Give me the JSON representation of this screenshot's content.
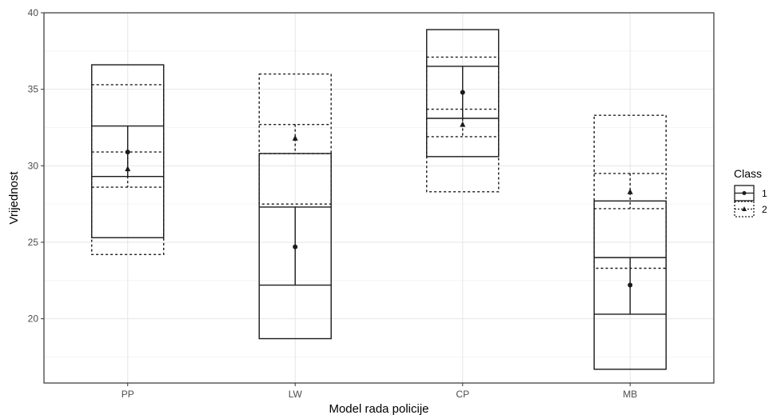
{
  "chart_data": {
    "type": "crossbar",
    "xlabel": "Model rada policije",
    "ylabel": "Vrijednost",
    "categories": [
      "PP",
      "LW",
      "CP",
      "MB"
    ],
    "yticks": [
      20,
      25,
      30,
      35,
      40
    ],
    "ylim": [
      15.8,
      40
    ],
    "grid": true,
    "legend": {
      "title": "Class",
      "position": "right",
      "entries": [
        "1",
        "2"
      ]
    },
    "series": [
      {
        "name": "1",
        "line_style": "solid",
        "marker": "circle",
        "boxes": [
          {
            "category": "PP",
            "outer_low": 25.3,
            "outer_high": 36.6,
            "inner_low": 29.3,
            "inner_high": 32.6,
            "point": 30.9
          },
          {
            "category": "LW",
            "outer_low": 18.7,
            "outer_high": 30.8,
            "inner_low": 22.2,
            "inner_high": 27.3,
            "point": 24.7
          },
          {
            "category": "CP",
            "outer_low": 30.6,
            "outer_high": 38.9,
            "inner_low": 33.1,
            "inner_high": 36.5,
            "point": 34.8
          },
          {
            "category": "MB",
            "outer_low": 16.7,
            "outer_high": 27.7,
            "inner_low": 20.3,
            "inner_high": 24.0,
            "point": 22.2
          }
        ]
      },
      {
        "name": "2",
        "line_style": "dotted",
        "marker": "triangle",
        "boxes": [
          {
            "category": "PP",
            "outer_low": 24.2,
            "outer_high": 35.3,
            "inner_low": 28.6,
            "inner_high": 30.9,
            "point": 29.8
          },
          {
            "category": "LW",
            "outer_low": 27.5,
            "outer_high": 36.0,
            "inner_low": 30.8,
            "inner_high": 32.7,
            "point": 31.8
          },
          {
            "category": "CP",
            "outer_low": 28.3,
            "outer_high": 37.1,
            "inner_low": 31.9,
            "inner_high": 33.7,
            "point": 32.7
          },
          {
            "category": "MB",
            "outer_low": 23.3,
            "outer_high": 33.3,
            "inner_low": 27.2,
            "inner_high": 29.5,
            "point": 28.3
          }
        ]
      }
    ]
  }
}
